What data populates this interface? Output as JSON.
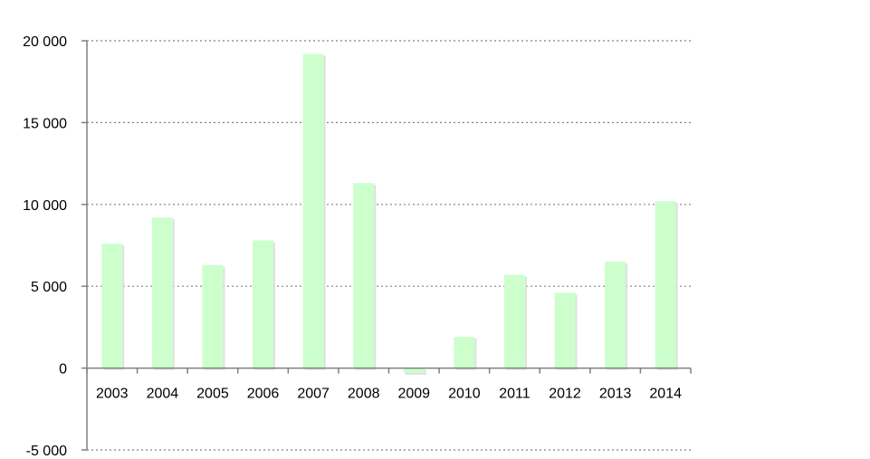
{
  "chart_data": {
    "type": "bar",
    "title": "",
    "xlabel": "",
    "ylabel": "",
    "categories": [
      "2003",
      "2004",
      "2005",
      "2006",
      "2007",
      "2008",
      "2009",
      "2010",
      "2011",
      "2012",
      "2013",
      "2014"
    ],
    "values": [
      7600,
      9200,
      6300,
      7800,
      19200,
      11300,
      -300,
      1900,
      5700,
      4600,
      6500,
      10200
    ],
    "ylim": [
      -5000,
      20000
    ],
    "yticks": [
      20000,
      15000,
      10000,
      5000,
      0,
      -5000
    ],
    "ytick_labels": [
      "20 000",
      "15 000",
      "10 000",
      "5 000",
      "0",
      "-5 000"
    ],
    "grid": true,
    "legend": "none",
    "colors": {
      "bar": "#ccffcc",
      "bar_shadow": "#d9d9d9",
      "grid": "#808080",
      "axis": "#808080"
    }
  }
}
